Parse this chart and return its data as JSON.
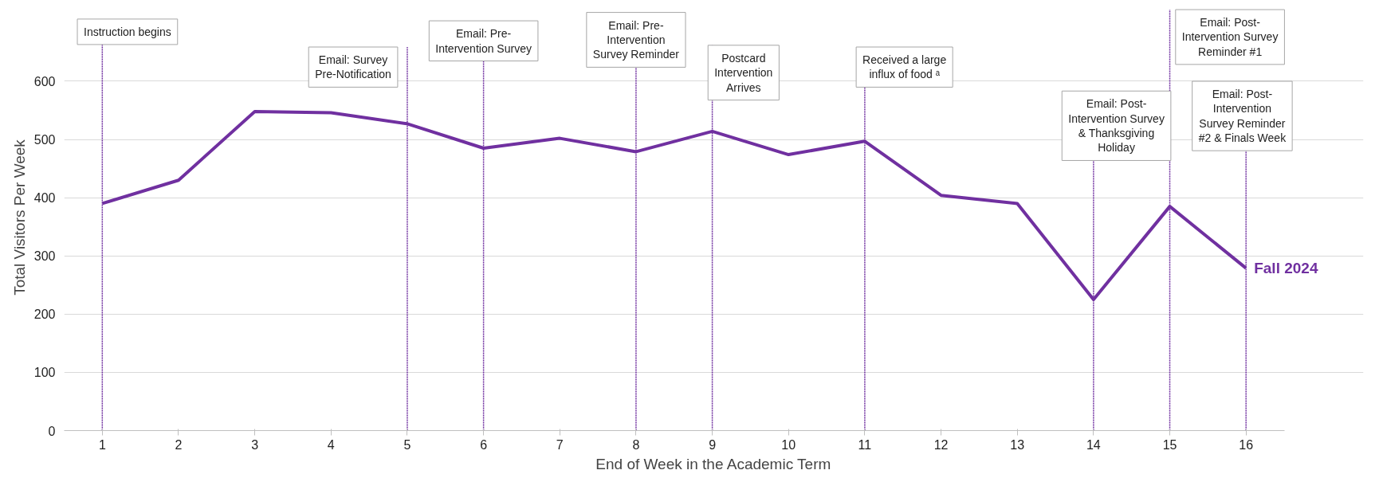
{
  "chart_data": {
    "type": "line",
    "xlabel": "End of Week in the Academic Term",
    "ylabel": "Total Visitors Per Week",
    "x": [
      1,
      2,
      3,
      4,
      5,
      6,
      7,
      8,
      9,
      10,
      11,
      12,
      13,
      14,
      15,
      16
    ],
    "series": [
      {
        "name": "Fall 2024",
        "color": "#7030a0",
        "values": [
          390,
          430,
          548,
          546,
          527,
          485,
          502,
          479,
          514,
          474,
          497,
          404,
          390,
          225,
          385,
          279
        ]
      }
    ],
    "xlim": [
      0.5,
      16.5
    ],
    "ylim": [
      0,
      600
    ],
    "xticks": [
      1,
      2,
      3,
      4,
      5,
      6,
      7,
      8,
      9,
      10,
      11,
      12,
      13,
      14,
      15,
      16
    ],
    "yticks": [
      0,
      100,
      200,
      300,
      400,
      500,
      600
    ],
    "grid": "y",
    "legend": false,
    "marker": "none",
    "line_style": "solid",
    "ref_lines": [
      {
        "axis": "x",
        "value": 1,
        "label": "Instruction begins",
        "color": "#7030a0",
        "line_style": "dashed"
      },
      {
        "axis": "x",
        "value": 5,
        "label": "Email: Survey Pre-Notification",
        "color": "#7030a0",
        "line_style": "dashed"
      },
      {
        "axis": "x",
        "value": 6,
        "label": "Email: Pre-Intervention Survey",
        "color": "#7030a0",
        "line_style": "dashed"
      },
      {
        "axis": "x",
        "value": 8,
        "label": "Email: Pre-Intervention Survey Reminder",
        "color": "#7030a0",
        "line_style": "dashed"
      },
      {
        "axis": "x",
        "value": 9,
        "label": "Postcard Intervention Arrives",
        "color": "#7030a0",
        "line_style": "dashed"
      },
      {
        "axis": "x",
        "value": 11,
        "label": "Received a large influx of food ᵃ",
        "color": "#7030a0",
        "line_style": "dashed"
      },
      {
        "axis": "x",
        "value": 14,
        "label": "Email: Post-Intervention Survey & Thanksgiving Holiday",
        "color": "#7030a0",
        "line_style": "dashed"
      },
      {
        "axis": "x",
        "value": 15,
        "label": "Email: Post-Intervention Survey Reminder #1",
        "color": "#7030a0",
        "line_style": "dashed"
      },
      {
        "axis": "x",
        "value": 16,
        "label": "Email: Post-Intervention Survey Reminder #2 & Finals Week",
        "color": "#7030a0",
        "line_style": "dashed"
      }
    ]
  }
}
